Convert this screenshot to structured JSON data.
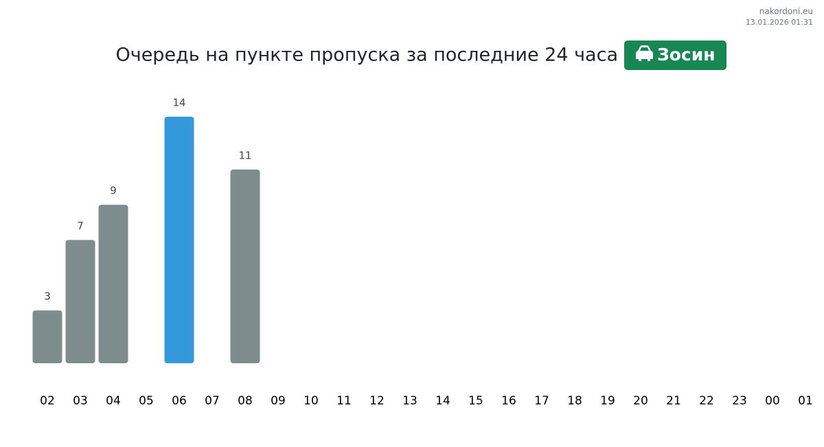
{
  "site": "nakordoni.eu",
  "timestamp": "13.01.2026 01:31",
  "chart_data": {
    "type": "bar",
    "title": "Очередь на пункте пропуска за последние 24 часа",
    "badge": "Зосин",
    "categories": [
      "02",
      "03",
      "04",
      "05",
      "06",
      "07",
      "08",
      "09",
      "10",
      "11",
      "12",
      "13",
      "14",
      "15",
      "16",
      "17",
      "18",
      "19",
      "20",
      "21",
      "22",
      "23",
      "00",
      "01"
    ],
    "values": [
      3,
      7,
      9,
      null,
      14,
      null,
      11,
      null,
      null,
      null,
      null,
      null,
      null,
      null,
      null,
      null,
      null,
      null,
      null,
      null,
      null,
      null,
      null,
      null
    ],
    "colors": [
      "#7f8c8d",
      "#7f8c8d",
      "#7f8c8d",
      "#7f8c8d",
      "#3498db",
      "#7f8c8d",
      "#7f8c8d",
      "#7f8c8d",
      "#7f8c8d",
      "#7f8c8d",
      "#7f8c8d",
      "#7f8c8d",
      "#7f8c8d",
      "#7f8c8d",
      "#7f8c8d",
      "#7f8c8d",
      "#7f8c8d",
      "#7f8c8d",
      "#7f8c8d",
      "#7f8c8d",
      "#7f8c8d",
      "#7f8c8d",
      "#7f8c8d",
      "#7f8c8d"
    ]
  }
}
